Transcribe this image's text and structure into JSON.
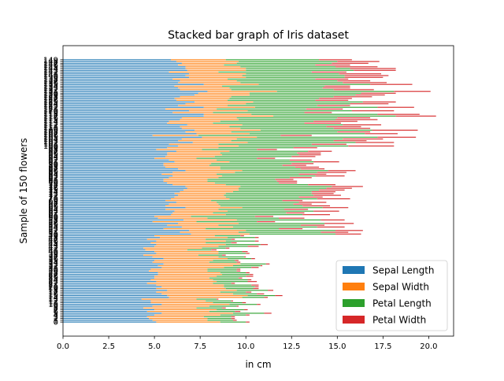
{
  "chart_data": {
    "type": "bar",
    "orientation": "horizontal",
    "stacked": true,
    "title": "Stacked bar graph of Iris dataset",
    "xlabel": "in cm",
    "ylabel": "Sample of 150 flowers",
    "xlim": [
      0,
      21.36
    ],
    "x_ticks": [
      0.0,
      2.5,
      5.0,
      7.5,
      10.0,
      12.5,
      15.0,
      17.5,
      20.0
    ],
    "x_tick_labels": [
      "0.0",
      "2.5",
      "5.0",
      "7.5",
      "10.0",
      "12.5",
      "15.0",
      "17.5",
      "20.0"
    ],
    "y_ticks": [
      0,
      1,
      2,
      3,
      4,
      5,
      6,
      7,
      8,
      9,
      10,
      11,
      12,
      13,
      14,
      15,
      16,
      17,
      18,
      19,
      20,
      21,
      22,
      23,
      24,
      25,
      26,
      27,
      28,
      29,
      30,
      31,
      32,
      33,
      34,
      35,
      36,
      37,
      38,
      39,
      40,
      41,
      42,
      43,
      44,
      45,
      46,
      47,
      48,
      49,
      50,
      51,
      52,
      53,
      54,
      55,
      56,
      57,
      58,
      59,
      60,
      61,
      62,
      63,
      64,
      65,
      66,
      67,
      68,
      69,
      70,
      71,
      72,
      73,
      74,
      75,
      76,
      77,
      78,
      79,
      80,
      81,
      82,
      83,
      84,
      85,
      86,
      87,
      88,
      89,
      90,
      91,
      92,
      93,
      94,
      95,
      96,
      97,
      98,
      99,
      100,
      101,
      102,
      103,
      104,
      105,
      106,
      107,
      108,
      109,
      110,
      111,
      112,
      113,
      114,
      115,
      116,
      117,
      118,
      119,
      120,
      121,
      122,
      123,
      124,
      125,
      126,
      127,
      128,
      129,
      130,
      131,
      132,
      133,
      134,
      135,
      136,
      137,
      138,
      139,
      140,
      141,
      142,
      143,
      144,
      145,
      146,
      147,
      148,
      149
    ],
    "categories": [
      0,
      1,
      2,
      3,
      4,
      5,
      6,
      7,
      8,
      9,
      10,
      11,
      12,
      13,
      14,
      15,
      16,
      17,
      18,
      19,
      20,
      21,
      22,
      23,
      24,
      25,
      26,
      27,
      28,
      29,
      30,
      31,
      32,
      33,
      34,
      35,
      36,
      37,
      38,
      39,
      40,
      41,
      42,
      43,
      44,
      45,
      46,
      47,
      48,
      49,
      50,
      51,
      52,
      53,
      54,
      55,
      56,
      57,
      58,
      59,
      60,
      61,
      62,
      63,
      64,
      65,
      66,
      67,
      68,
      69,
      70,
      71,
      72,
      73,
      74,
      75,
      76,
      77,
      78,
      79,
      80,
      81,
      82,
      83,
      84,
      85,
      86,
      87,
      88,
      89,
      90,
      91,
      92,
      93,
      94,
      95,
      96,
      97,
      98,
      99,
      100,
      101,
      102,
      103,
      104,
      105,
      106,
      107,
      108,
      109,
      110,
      111,
      112,
      113,
      114,
      115,
      116,
      117,
      118,
      119,
      120,
      121,
      122,
      123,
      124,
      125,
      126,
      127,
      128,
      129,
      130,
      131,
      132,
      133,
      134,
      135,
      136,
      137,
      138,
      139,
      140,
      141,
      142,
      143,
      144,
      145,
      146,
      147,
      148,
      149
    ],
    "series": [
      {
        "name": "Sepal Length",
        "color": "#1f77b4",
        "values": [
          5.1,
          4.9,
          4.7,
          4.6,
          5.0,
          5.4,
          4.6,
          5.0,
          4.4,
          4.9,
          5.4,
          4.8,
          4.8,
          4.3,
          5.8,
          5.7,
          5.4,
          5.1,
          5.7,
          5.1,
          5.4,
          5.1,
          4.6,
          5.1,
          4.8,
          5.0,
          5.0,
          5.2,
          5.2,
          4.7,
          4.8,
          5.4,
          5.2,
          5.5,
          4.9,
          5.0,
          5.5,
          4.9,
          4.4,
          5.1,
          5.0,
          4.5,
          4.4,
          5.0,
          5.1,
          4.8,
          5.1,
          4.6,
          5.3,
          5.0,
          7.0,
          6.4,
          6.9,
          5.5,
          6.5,
          5.7,
          6.3,
          4.9,
          6.6,
          5.2,
          5.0,
          5.9,
          6.0,
          6.1,
          5.6,
          6.7,
          5.6,
          5.8,
          6.2,
          5.6,
          5.9,
          6.1,
          6.3,
          6.1,
          6.4,
          6.6,
          6.8,
          6.7,
          6.0,
          5.7,
          5.5,
          5.5,
          5.8,
          6.0,
          5.4,
          6.0,
          6.7,
          6.3,
          5.6,
          5.5,
          5.5,
          6.1,
          5.8,
          5.0,
          5.6,
          5.7,
          5.7,
          6.2,
          5.1,
          5.7,
          6.3,
          5.8,
          7.1,
          6.3,
          6.5,
          7.6,
          4.9,
          7.3,
          6.7,
          7.2,
          6.5,
          6.4,
          6.8,
          5.7,
          5.8,
          6.4,
          6.5,
          7.7,
          7.7,
          6.0,
          6.9,
          5.6,
          7.7,
          6.3,
          6.7,
          7.2,
          6.2,
          6.1,
          6.4,
          7.2,
          7.4,
          7.9,
          6.4,
          6.3,
          6.1,
          7.7,
          6.3,
          6.4,
          6.0,
          6.9,
          6.7,
          6.9,
          5.8,
          6.8,
          6.7,
          6.7,
          6.3,
          6.5,
          6.2,
          5.9
        ]
      },
      {
        "name": "Sepal Width",
        "color": "#ff7f0e",
        "values": [
          3.5,
          3.0,
          3.2,
          3.1,
          3.6,
          3.9,
          3.4,
          3.4,
          2.9,
          3.1,
          3.7,
          3.4,
          3.0,
          3.0,
          4.0,
          4.4,
          3.9,
          3.5,
          3.8,
          3.8,
          3.4,
          3.7,
          3.6,
          3.3,
          3.4,
          3.0,
          3.4,
          3.5,
          3.4,
          3.2,
          3.1,
          3.4,
          4.1,
          4.2,
          3.1,
          3.2,
          3.5,
          3.6,
          3.0,
          3.4,
          3.5,
          2.3,
          3.2,
          3.5,
          3.8,
          3.0,
          3.8,
          3.2,
          3.7,
          3.3,
          3.2,
          3.2,
          3.1,
          2.3,
          2.8,
          2.8,
          3.3,
          2.4,
          2.9,
          2.7,
          2.0,
          3.0,
          2.2,
          2.9,
          2.9,
          3.1,
          3.0,
          2.7,
          2.2,
          2.5,
          3.2,
          2.8,
          2.5,
          2.8,
          2.9,
          3.0,
          2.8,
          3.0,
          2.9,
          2.6,
          2.4,
          2.4,
          2.7,
          2.7,
          3.0,
          3.4,
          3.1,
          2.3,
          3.0,
          2.5,
          2.6,
          3.0,
          2.6,
          2.3,
          2.7,
          3.0,
          2.9,
          2.9,
          2.5,
          2.8,
          3.3,
          2.7,
          3.0,
          2.9,
          3.0,
          3.0,
          2.5,
          2.9,
          2.5,
          3.6,
          3.2,
          2.7,
          3.0,
          2.5,
          2.8,
          3.2,
          3.0,
          3.8,
          2.6,
          2.2,
          3.2,
          2.8,
          2.8,
          2.7,
          3.3,
          3.2,
          2.8,
          3.0,
          2.8,
          3.0,
          2.8,
          3.8,
          2.8,
          2.8,
          2.6,
          3.0,
          3.4,
          3.1,
          3.0,
          3.1,
          3.1,
          3.1,
          2.7,
          3.2,
          3.3,
          3.0,
          2.5,
          3.0,
          3.4,
          3.0
        ]
      },
      {
        "name": "Petal Length",
        "color": "#2ca02c",
        "values": [
          1.4,
          1.4,
          1.3,
          1.5,
          1.4,
          1.7,
          1.4,
          1.5,
          1.4,
          1.5,
          1.5,
          1.6,
          1.4,
          1.1,
          1.2,
          1.5,
          1.3,
          1.4,
          1.7,
          1.5,
          1.7,
          1.5,
          1.0,
          1.7,
          1.9,
          1.6,
          1.6,
          1.5,
          1.4,
          1.6,
          1.6,
          1.5,
          1.5,
          1.4,
          1.5,
          1.2,
          1.3,
          1.4,
          1.3,
          1.5,
          1.3,
          1.3,
          1.3,
          1.6,
          1.9,
          1.4,
          1.6,
          1.4,
          1.5,
          1.4,
          4.7,
          4.5,
          4.9,
          4.0,
          4.6,
          4.5,
          4.7,
          3.3,
          4.6,
          3.9,
          3.5,
          4.2,
          4.0,
          4.7,
          3.6,
          4.4,
          4.5,
          4.1,
          4.5,
          3.9,
          4.8,
          4.0,
          4.9,
          4.7,
          4.3,
          4.4,
          4.8,
          5.0,
          4.5,
          3.5,
          3.8,
          3.7,
          3.9,
          5.1,
          4.5,
          4.5,
          4.7,
          4.4,
          4.1,
          4.0,
          4.4,
          4.6,
          4.0,
          3.3,
          4.2,
          4.2,
          4.2,
          4.3,
          3.0,
          4.1,
          6.0,
          5.1,
          5.9,
          5.6,
          5.8,
          6.6,
          4.5,
          6.3,
          5.8,
          6.1,
          5.1,
          5.3,
          5.5,
          5.0,
          5.1,
          5.3,
          5.5,
          6.7,
          6.9,
          5.0,
          5.7,
          4.9,
          6.7,
          4.9,
          5.7,
          6.0,
          4.8,
          4.9,
          5.6,
          5.8,
          6.1,
          6.4,
          5.6,
          5.1,
          5.6,
          6.1,
          5.6,
          5.5,
          4.8,
          5.4,
          5.6,
          5.1,
          5.1,
          5.9,
          5.7,
          5.2,
          5.0,
          5.2,
          5.4,
          5.1
        ]
      },
      {
        "name": "Petal Width",
        "color": "#d62728",
        "values": [
          0.2,
          0.2,
          0.2,
          0.2,
          0.2,
          0.4,
          0.3,
          0.2,
          0.2,
          0.1,
          0.2,
          0.2,
          0.1,
          0.1,
          0.2,
          0.4,
          0.4,
          0.3,
          0.3,
          0.3,
          0.2,
          0.4,
          0.2,
          0.5,
          0.2,
          0.2,
          0.4,
          0.2,
          0.2,
          0.2,
          0.2,
          0.4,
          0.1,
          0.2,
          0.2,
          0.2,
          0.2,
          0.1,
          0.2,
          0.2,
          0.3,
          0.3,
          0.2,
          0.6,
          0.4,
          0.3,
          0.2,
          0.2,
          0.2,
          0.2,
          1.4,
          1.5,
          1.5,
          1.3,
          1.5,
          1.3,
          1.6,
          1.0,
          1.3,
          1.4,
          1.0,
          1.5,
          1.0,
          1.4,
          1.3,
          1.4,
          1.5,
          1.0,
          1.5,
          1.1,
          1.8,
          1.3,
          1.5,
          1.2,
          1.3,
          1.4,
          1.4,
          1.7,
          1.5,
          1.0,
          1.1,
          1.0,
          1.2,
          1.6,
          1.5,
          1.6,
          1.5,
          1.3,
          1.3,
          1.3,
          1.2,
          1.4,
          1.2,
          1.0,
          1.3,
          1.2,
          1.3,
          1.3,
          1.1,
          1.3,
          2.5,
          1.9,
          2.1,
          1.8,
          2.2,
          2.1,
          1.7,
          1.8,
          1.8,
          2.5,
          2.0,
          1.9,
          2.1,
          2.0,
          2.4,
          2.3,
          1.8,
          2.2,
          2.3,
          1.5,
          2.3,
          2.0,
          2.0,
          1.8,
          2.1,
          1.8,
          1.8,
          1.8,
          2.1,
          1.6,
          1.9,
          2.0,
          2.2,
          1.5,
          1.4,
          2.3,
          2.4,
          1.8,
          1.8,
          2.1,
          2.4,
          2.3,
          1.9,
          2.3,
          2.5,
          2.3,
          1.9,
          2.0,
          2.3,
          1.8
        ]
      }
    ],
    "legend": {
      "position": "lower-right",
      "entries": [
        "Sepal Length",
        "Sepal Width",
        "Petal Length",
        "Petal Width"
      ]
    },
    "grid": false
  }
}
